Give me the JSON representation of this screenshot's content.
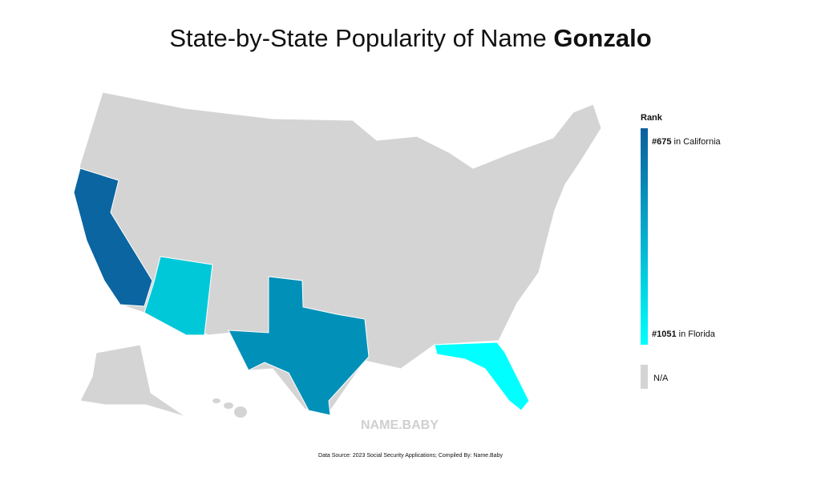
{
  "title": {
    "text": "State-by-State Popularity of Name",
    "name": "Gonzalo"
  },
  "legend": {
    "title": "Rank",
    "top": {
      "rank": "#675",
      "label": "in California"
    },
    "bottom": {
      "rank": "#1051",
      "label": "in Florida"
    },
    "na": "N/A"
  },
  "watermark": "NAME.BABY",
  "source": "Data Source: 2023 Social Security Applications; Compiled By: Name.Baby"
}
